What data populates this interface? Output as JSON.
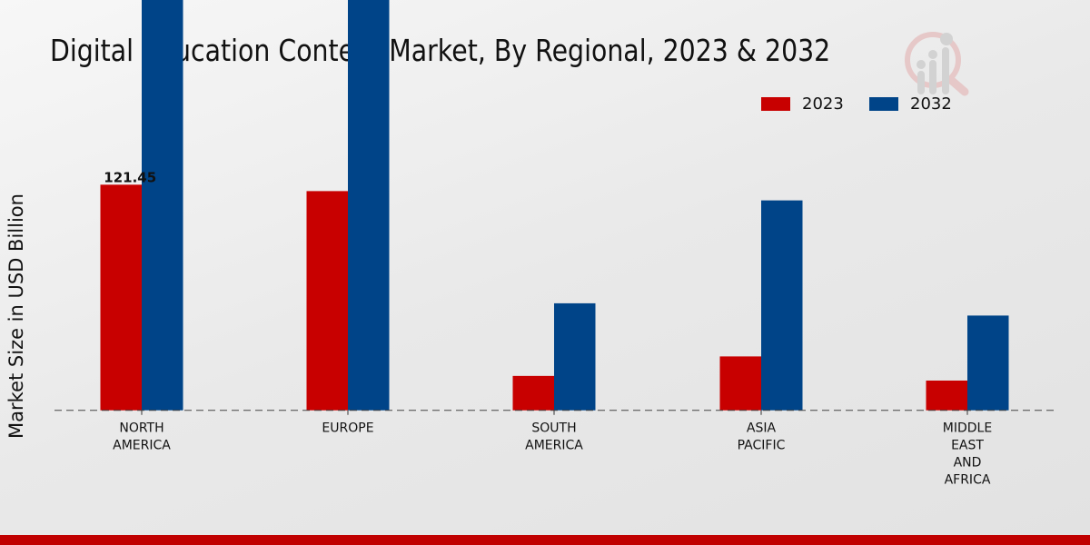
{
  "chart_data": {
    "type": "bar",
    "title": "Digital Education Content Market, By Regional, 2023 & 2032",
    "xlabel": "",
    "ylabel": "Market Size in USD Billion",
    "categories": [
      [
        "NORTH",
        "AMERICA"
      ],
      [
        "EUROPE"
      ],
      [
        "SOUTH",
        "AMERICA"
      ],
      [
        "ASIA",
        "PACIFIC"
      ],
      [
        "MIDDLE",
        "EAST",
        "AND",
        "AFRICA"
      ]
    ],
    "series": [
      {
        "name": "2023",
        "color": "#c80000",
        "values": [
          121.45,
          118,
          18.5,
          29,
          16
        ]
      },
      {
        "name": "2032",
        "color": "#004488",
        "values": [
          355,
          283,
          57.6,
          113,
          51
        ]
      }
    ],
    "data_labels": [
      {
        "series": 0,
        "index": 0,
        "text": "121.45"
      }
    ],
    "ylim": [
      0,
      400
    ],
    "grid": false,
    "legend_placement": "top-right"
  }
}
